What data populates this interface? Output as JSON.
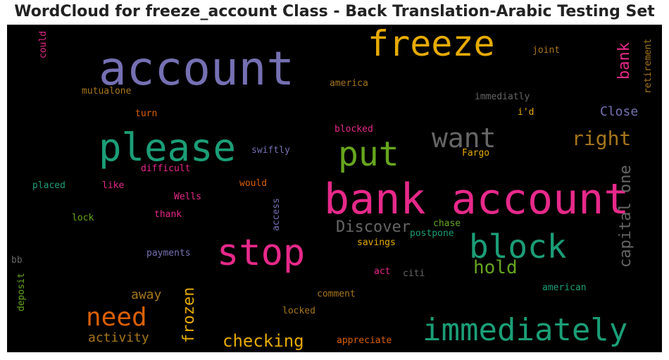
{
  "title": "WordCloud for freeze_account Class - Back Translation-Arabic Testing Set",
  "chart_data": {
    "type": "wordcloud",
    "words": [
      {
        "text": "account",
        "color": "#7570b3",
        "size": "xl"
      },
      {
        "text": "freeze",
        "color": "#e6ab02",
        "size": "l"
      },
      {
        "text": "please",
        "color": "#1b9e77",
        "size": "l"
      },
      {
        "text": "put",
        "color": "#66a61e",
        "size": "l"
      },
      {
        "text": "want",
        "color": "#666666",
        "size": "m"
      },
      {
        "text": "bank account",
        "color": "#e7298a",
        "size": "xl"
      },
      {
        "text": "stop",
        "color": "#e7298a",
        "size": "l"
      },
      {
        "text": "block",
        "color": "#1b9e77",
        "size": "l"
      },
      {
        "text": "immediately",
        "color": "#1b9e77",
        "size": "l"
      },
      {
        "text": "need",
        "color": "#d95f02",
        "size": "m"
      },
      {
        "text": "right",
        "color": "#a6761d",
        "size": "m"
      },
      {
        "text": "hold",
        "color": "#66a61e",
        "size": "m"
      },
      {
        "text": "Discover",
        "color": "#666666",
        "size": "s"
      },
      {
        "text": "capital one",
        "color": "#666666",
        "size": "s"
      },
      {
        "text": "frozen",
        "color": "#e6ab02",
        "size": "s"
      },
      {
        "text": "checking",
        "color": "#e6ab02",
        "size": "s"
      },
      {
        "text": "bank",
        "color": "#e7298a",
        "size": "s"
      },
      {
        "text": "Close",
        "color": "#7570b3",
        "size": "xs"
      },
      {
        "text": "activity",
        "color": "#a6761d",
        "size": "xs"
      },
      {
        "text": "away",
        "color": "#a6761d",
        "size": "xs"
      },
      {
        "text": "could",
        "color": "#e7298a",
        "size": "xxs"
      },
      {
        "text": "joint",
        "color": "#a6761d",
        "size": "xxs"
      },
      {
        "text": "retirement",
        "color": "#a6761d",
        "size": "xxs"
      },
      {
        "text": "mutualone",
        "color": "#a6761d",
        "size": "xxs"
      },
      {
        "text": "america",
        "color": "#a6761d",
        "size": "xxs"
      },
      {
        "text": "immediatly",
        "color": "#666666",
        "size": "xxs"
      },
      {
        "text": "turn",
        "color": "#d95f02",
        "size": "xxs"
      },
      {
        "text": "i'd",
        "color": "#e6ab02",
        "size": "xxs"
      },
      {
        "text": "blocked",
        "color": "#e7298a",
        "size": "xxs"
      },
      {
        "text": "swiftly",
        "color": "#7570b3",
        "size": "xxs"
      },
      {
        "text": "Fargo",
        "color": "#e6ab02",
        "size": "xxs"
      },
      {
        "text": "difficult",
        "color": "#e7298a",
        "size": "xxs"
      },
      {
        "text": "placed",
        "color": "#1b9e77",
        "size": "xxs"
      },
      {
        "text": "like",
        "color": "#e7298a",
        "size": "xxs"
      },
      {
        "text": "would",
        "color": "#d95f02",
        "size": "xxs"
      },
      {
        "text": "Wells",
        "color": "#e7298a",
        "size": "xxs"
      },
      {
        "text": "thank",
        "color": "#e7298a",
        "size": "xxs"
      },
      {
        "text": "access",
        "color": "#7570b3",
        "size": "xxs"
      },
      {
        "text": "lock",
        "color": "#66a61e",
        "size": "xxs"
      },
      {
        "text": "chase",
        "color": "#66a61e",
        "size": "xxs"
      },
      {
        "text": "postpone",
        "color": "#1b9e77",
        "size": "xxs"
      },
      {
        "text": "savings",
        "color": "#e6ab02",
        "size": "xxs"
      },
      {
        "text": "payments",
        "color": "#7570b3",
        "size": "xxs"
      },
      {
        "text": "bb",
        "color": "#666666",
        "size": "xxs"
      },
      {
        "text": "act",
        "color": "#e7298a",
        "size": "xxs"
      },
      {
        "text": "citi",
        "color": "#666666",
        "size": "xxs"
      },
      {
        "text": "deposit",
        "color": "#66a61e",
        "size": "xxs"
      },
      {
        "text": "comment",
        "color": "#a6761d",
        "size": "xxs"
      },
      {
        "text": "american",
        "color": "#1b9e77",
        "size": "xxs"
      },
      {
        "text": "locked",
        "color": "#a6761d",
        "size": "xxs"
      },
      {
        "text": "appreciate",
        "color": "#d95f02",
        "size": "xxs"
      }
    ]
  }
}
